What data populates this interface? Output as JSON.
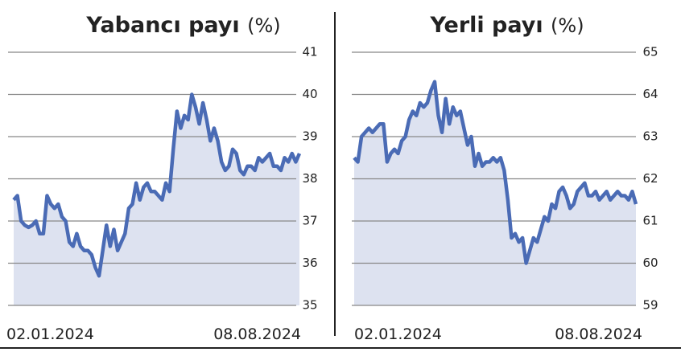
{
  "chart_data": [
    {
      "type": "line",
      "title": "Yabancı payı",
      "unit": "(%)",
      "color": "#4a6bb5",
      "fill": "#dde2f0",
      "categories": [
        "02.01.2024",
        null,
        null,
        null,
        null,
        null,
        null,
        null,
        null,
        null,
        null,
        null,
        null,
        null,
        null,
        null,
        null,
        null,
        null,
        null,
        null,
        null,
        null,
        null,
        null,
        null,
        null,
        null,
        null,
        null,
        null,
        null,
        null,
        null,
        null,
        null,
        null,
        null,
        null,
        null,
        null,
        null,
        null,
        null,
        null,
        null,
        null,
        null,
        null,
        null,
        null,
        null,
        null,
        null,
        null,
        null,
        null,
        null,
        null,
        null,
        null,
        null,
        null,
        null,
        null,
        null,
        null,
        null,
        null,
        null,
        null,
        null,
        null,
        null,
        null,
        null,
        null,
        "08.08.2024"
      ],
      "values": [
        37.5,
        37.6,
        37.0,
        36.9,
        36.85,
        36.9,
        37.0,
        36.7,
        36.7,
        37.6,
        37.4,
        37.3,
        37.4,
        37.1,
        37.0,
        36.5,
        36.4,
        36.7,
        36.4,
        36.3,
        36.3,
        36.2,
        35.9,
        35.7,
        36.3,
        36.9,
        36.4,
        36.8,
        36.3,
        36.5,
        36.7,
        37.3,
        37.4,
        37.9,
        37.5,
        37.8,
        37.9,
        37.7,
        37.7,
        37.6,
        37.5,
        37.9,
        37.7,
        38.7,
        39.6,
        39.2,
        39.5,
        39.4,
        40.0,
        39.7,
        39.3,
        39.8,
        39.4,
        38.9,
        39.2,
        38.9,
        38.4,
        38.2,
        38.3,
        38.7,
        38.6,
        38.2,
        38.1,
        38.3,
        38.3,
        38.2,
        38.5,
        38.4,
        38.5,
        38.6,
        38.3,
        38.3,
        38.2,
        38.5,
        38.4,
        38.6,
        38.4,
        38.6
      ],
      "ylim": [
        35,
        41
      ],
      "yticks": [
        35,
        36,
        37,
        38,
        39,
        40,
        41
      ],
      "grid": true
    },
    {
      "type": "line",
      "title": "Yerli payı",
      "unit": "(%)",
      "color": "#4a6bb5",
      "fill": "#dde2f0",
      "categories": [
        "02.01.2024",
        null,
        null,
        null,
        null,
        null,
        null,
        null,
        null,
        null,
        null,
        null,
        null,
        null,
        null,
        null,
        null,
        null,
        null,
        null,
        null,
        null,
        null,
        null,
        null,
        null,
        null,
        null,
        null,
        null,
        null,
        null,
        null,
        null,
        null,
        null,
        null,
        null,
        null,
        null,
        null,
        null,
        null,
        null,
        null,
        null,
        null,
        null,
        null,
        null,
        null,
        null,
        null,
        null,
        null,
        null,
        null,
        null,
        null,
        null,
        null,
        null,
        null,
        null,
        null,
        null,
        null,
        null,
        null,
        null,
        null,
        null,
        null,
        null,
        null,
        null,
        null,
        "08.08.2024"
      ],
      "values": [
        62.5,
        62.4,
        63.0,
        63.1,
        63.2,
        63.1,
        63.2,
        63.3,
        63.3,
        62.4,
        62.6,
        62.7,
        62.6,
        62.9,
        63.0,
        63.4,
        63.6,
        63.5,
        63.8,
        63.7,
        63.8,
        64.1,
        64.3,
        63.5,
        63.1,
        63.9,
        63.3,
        63.7,
        63.5,
        63.6,
        63.2,
        62.8,
        63.0,
        62.3,
        62.6,
        62.3,
        62.4,
        62.4,
        62.5,
        62.4,
        62.5,
        62.2,
        61.5,
        60.6,
        60.7,
        60.5,
        60.6,
        60.0,
        60.3,
        60.6,
        60.5,
        60.8,
        61.1,
        61.0,
        61.4,
        61.3,
        61.7,
        61.8,
        61.6,
        61.3,
        61.4,
        61.7,
        61.8,
        61.9,
        61.6,
        61.6,
        61.7,
        61.5,
        61.6,
        61.7,
        61.5,
        61.6,
        61.7,
        61.6,
        61.6,
        61.5,
        61.7,
        61.4
      ],
      "ylim": [
        59,
        65
      ],
      "yticks": [
        59,
        60,
        61,
        62,
        63,
        64,
        65
      ],
      "grid": true
    }
  ]
}
